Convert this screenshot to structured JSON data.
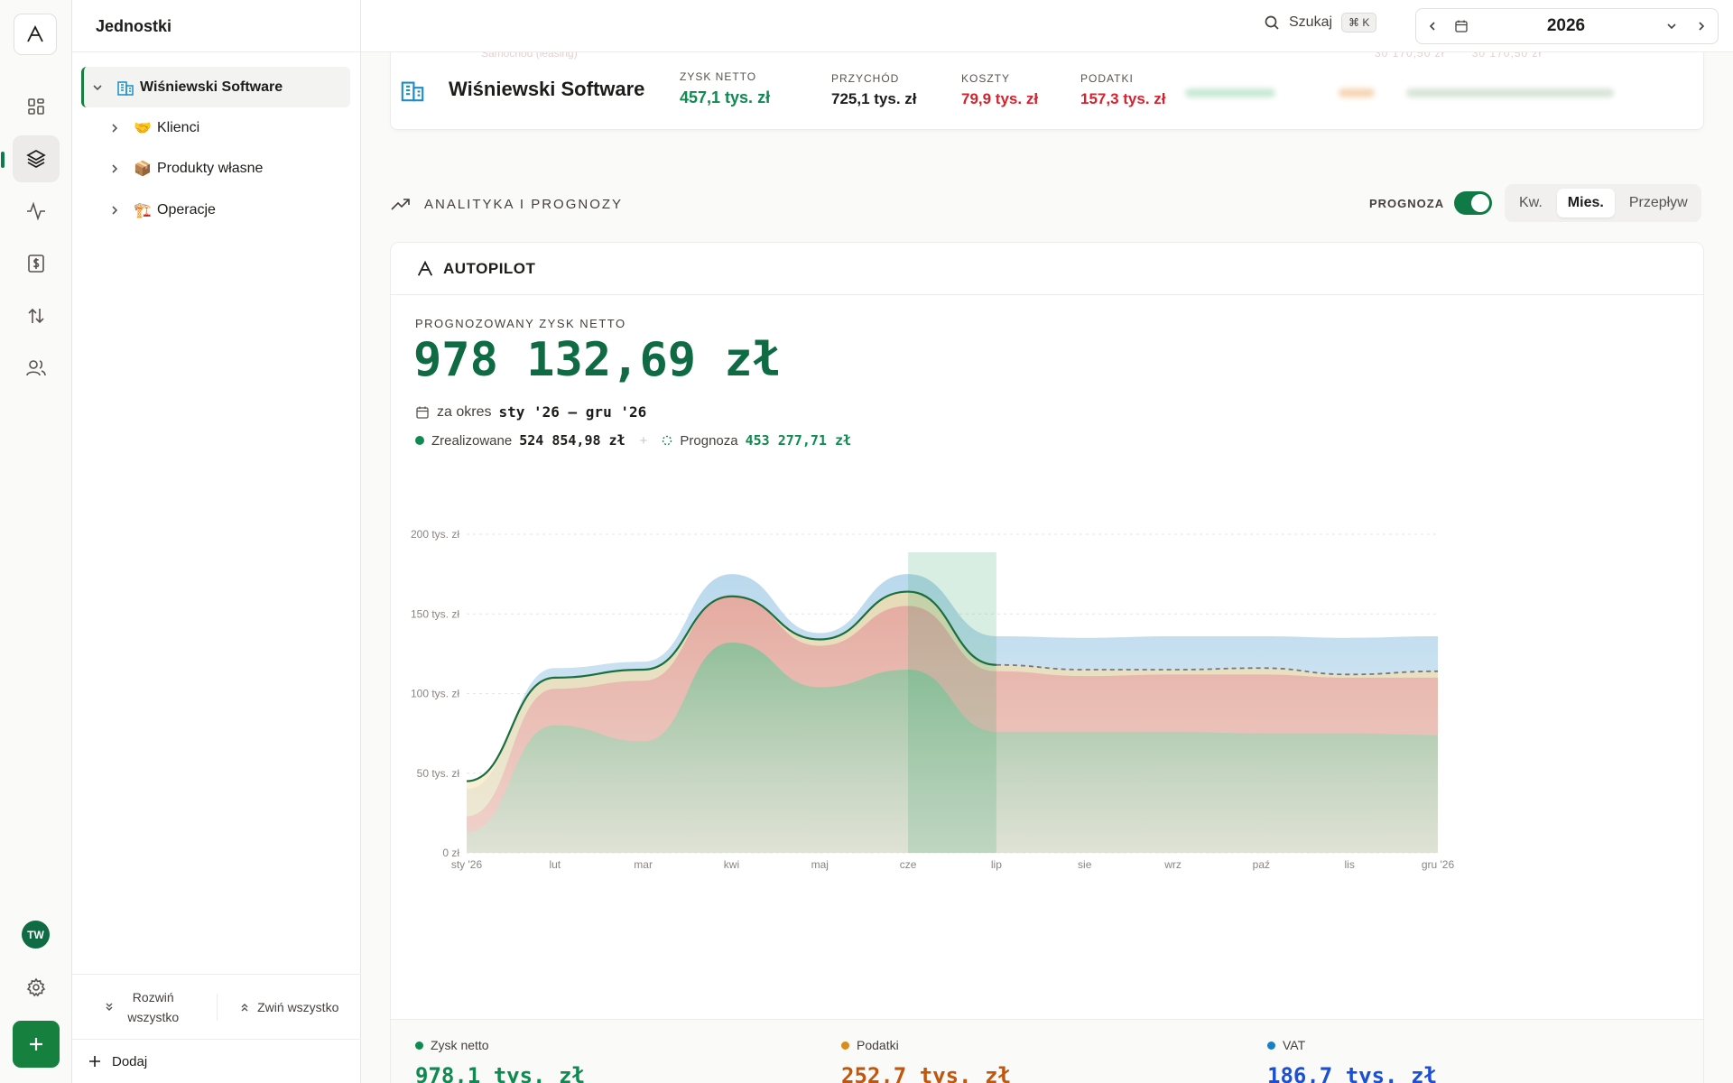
{
  "app": {
    "logo_letter": "A",
    "title": "Jednostki"
  },
  "rail": {
    "items": [
      "dashboard-icon",
      "layers-icon",
      "activity-icon",
      "invoice-icon",
      "transfers-icon",
      "users-icon"
    ],
    "avatar_initials": "TW"
  },
  "sidebar": {
    "root": {
      "label": "Wiśniewski Software",
      "icon": "🏢"
    },
    "children": [
      {
        "label": "Klienci",
        "icon": "🤝"
      },
      {
        "label": "Produkty własne",
        "icon": "📦"
      },
      {
        "label": "Operacje",
        "icon": "🏗️"
      }
    ],
    "expand_all": "Rozwiń wszystko",
    "collapse_all": "Zwiń wszystko",
    "add": "Dodaj"
  },
  "topbar": {
    "search_label": "Szukaj",
    "shortcut": "⌘ K",
    "year": "2026"
  },
  "entity": {
    "name": "Wiśniewski Software",
    "ghost_row": {
      "label": "Samochód (leasing)",
      "values": [
        "30 170,50 zł",
        "30 170,50 zł"
      ]
    },
    "kpis": [
      {
        "label": "ZYSK NETTO",
        "value": "457,1 tys. zł",
        "color": "#0f8a50"
      },
      {
        "label": "PRZYCHÓD",
        "value": "725,1 tys. zł",
        "color": "#1c1c1a"
      },
      {
        "label": "KOSZTY",
        "value": "79,9 tys. zł",
        "color": "#d5222e"
      },
      {
        "label": "PODATKI",
        "value": "157,3 tys. zł",
        "color": "#d5222e"
      }
    ]
  },
  "analytics": {
    "title": "ANALITYKA I PROGNOZY",
    "forecast_label": "PROGNOZA",
    "forecast_on": true,
    "segments": [
      {
        "label": "Kw.",
        "active": false
      },
      {
        "label": "Mies.",
        "active": true
      },
      {
        "label": "Przepływ",
        "active": false
      }
    ]
  },
  "autopilot": {
    "title": "AUTOPILOT",
    "forecast_label": "PROGNOZOWANY ZYSK NETTO",
    "forecast_value": "978 132,69 zł",
    "period_prefix": "za okres",
    "period": "sty '26 – gru '26",
    "realized_label": "Zrealizowane",
    "realized_value": "524 854,98 zł",
    "plus": "+",
    "forecast_part_label": "Prognoza",
    "forecast_part_value": "453 277,71 zł"
  },
  "chart_data": {
    "type": "area",
    "x": [
      "sty '26",
      "lut",
      "mar",
      "kwi",
      "maj",
      "cze",
      "lip",
      "sie",
      "wrz",
      "paź",
      "lis",
      "gru '26"
    ],
    "y_ticks": [
      "0 zł",
      "50 tys. zł",
      "100 tys. zł",
      "150 tys. zł",
      "200 tys. zł"
    ],
    "ylim": [
      0,
      200
    ],
    "actual_until_index": 6,
    "highlight_index": 5,
    "series": [
      {
        "name": "Zysk netto",
        "type": "area",
        "values": [
          13,
          80,
          70,
          132,
          104,
          115,
          76,
          76,
          76,
          75,
          75,
          74
        ],
        "color": "#2ea868"
      },
      {
        "name": "Podatki",
        "type": "stacked-area",
        "values": [
          23,
          103,
          108,
          162,
          130,
          155,
          114,
          111,
          112,
          112,
          110,
          110
        ],
        "color": "#e49a9a"
      },
      {
        "name": "VAT",
        "type": "stacked-area",
        "values": [
          40,
          116,
          120,
          175,
          138,
          175,
          136,
          135,
          136,
          136,
          135,
          136
        ],
        "color": "#a9cfe8"
      },
      {
        "name": "Zysk netto",
        "type": "line",
        "values": [
          45,
          110,
          115,
          161,
          134,
          164,
          118,
          115,
          115,
          116,
          112,
          114
        ],
        "color": "#1b6e3e"
      }
    ]
  },
  "legend": [
    {
      "label": "Zysk netto",
      "value": "978,1 tys. zł",
      "color": "#0f8a50"
    },
    {
      "label": "Podatki",
      "value": "252,7 tys. zł",
      "color": "#c1570d"
    },
    {
      "label": "VAT",
      "value": "186,7 tys. zł",
      "color": "#1b4fd6"
    }
  ]
}
